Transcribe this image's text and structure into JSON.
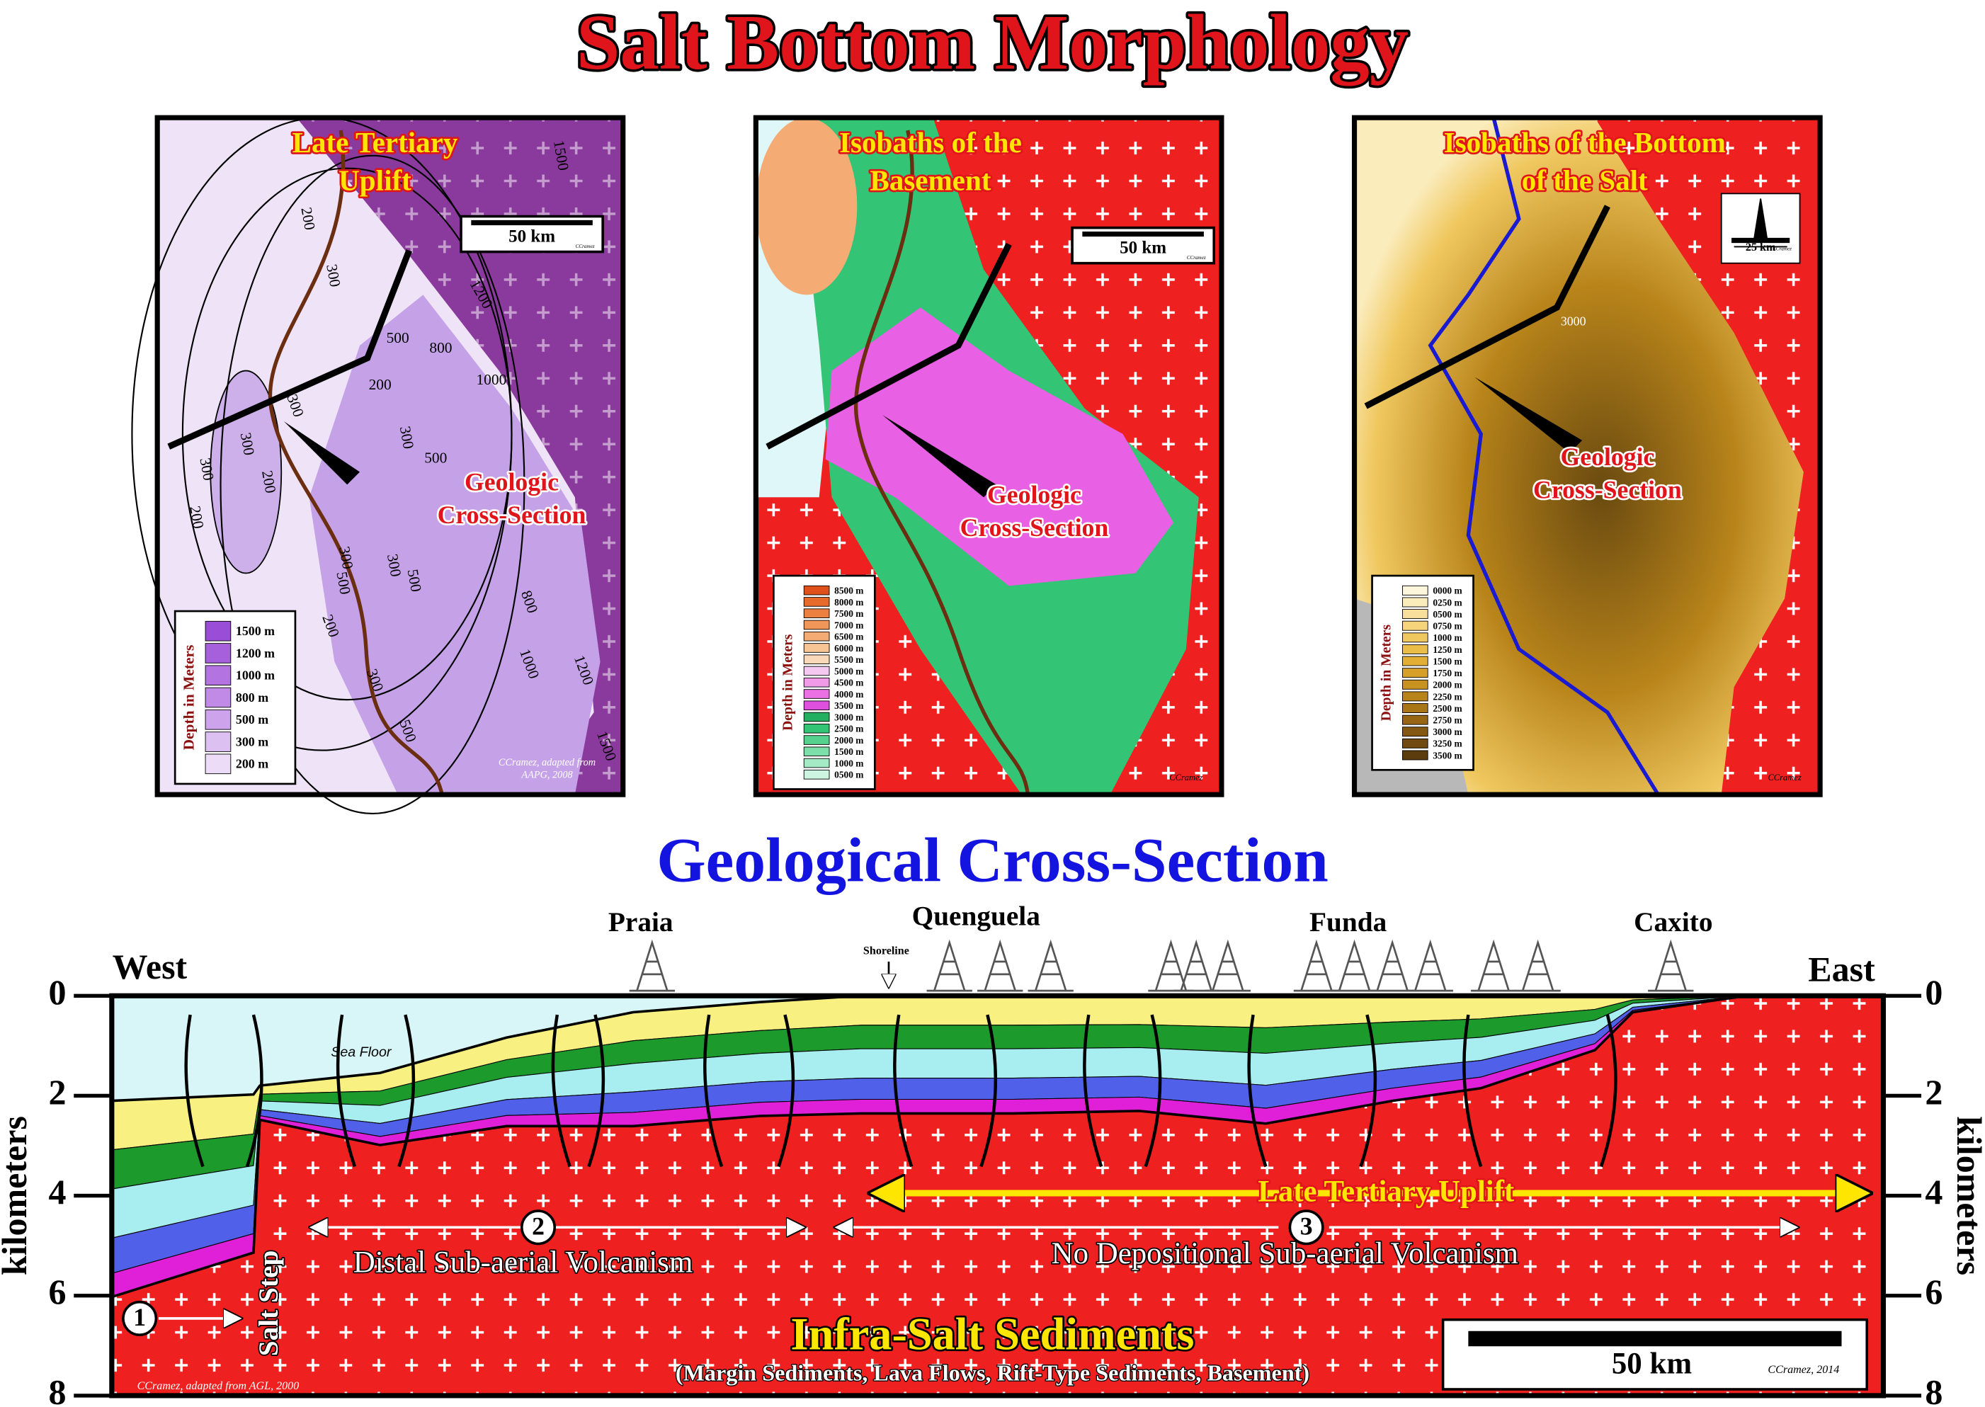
{
  "title": "Salt Bottom Morphology",
  "maps": [
    {
      "title_lines": [
        "Late Tertiary",
        "Uplift"
      ],
      "scale": "50 km",
      "scale_credit": "CCramez",
      "section_label": [
        "Geologic",
        "Cross-Section"
      ],
      "legend_title": "Depth in Meters",
      "legend": [
        {
          "label": "1500 m",
          "color": "#9a4ed8"
        },
        {
          "label": "1200 m",
          "color": "#a760dc"
        },
        {
          "label": "1000 m",
          "color": "#b373e0"
        },
        {
          "label": "800 m",
          "color": "#c08ae6"
        },
        {
          "label": "500 m",
          "color": "#cda3ec"
        },
        {
          "label": "300 m",
          "color": "#dcc0f2"
        },
        {
          "label": "200 m",
          "color": "#ecdcf8"
        }
      ],
      "contours": [
        "1500",
        "200",
        "300",
        "1200",
        "500",
        "800",
        "200",
        "1000",
        "300",
        "300",
        "200",
        "300",
        "200",
        "500",
        "300",
        "300",
        "300",
        "500",
        "500",
        "800",
        "1000",
        "1200",
        "1500",
        "200",
        "300",
        "500"
      ],
      "credit_lines": [
        "CCramez, adapted from",
        "AAPG, 2008"
      ]
    },
    {
      "title_lines": [
        "Isobaths of the",
        "Basement"
      ],
      "scale": "50 km",
      "scale_credit": "CCramez",
      "section_label": [
        "Geologic",
        "Cross-Section"
      ],
      "legend_title": "Depth in Meters",
      "legend": [
        {
          "label": "8500 m",
          "color": "#e0501a"
        },
        {
          "label": "8000 m",
          "color": "#e66a2a"
        },
        {
          "label": "7500 m",
          "color": "#ec8040"
        },
        {
          "label": "7000 m",
          "color": "#f09658"
        },
        {
          "label": "6500 m",
          "color": "#f4ac74"
        },
        {
          "label": "6000 m",
          "color": "#f7c494"
        },
        {
          "label": "5500 m",
          "color": "#f8d8b8"
        },
        {
          "label": "5000 m",
          "color": "#f4c8f0"
        },
        {
          "label": "4500 m",
          "color": "#f09ae8"
        },
        {
          "label": "4000 m",
          "color": "#ea70e4"
        },
        {
          "label": "3500 m",
          "color": "#e050de"
        },
        {
          "label": "3000 m",
          "color": "#22b060"
        },
        {
          "label": "2500 m",
          "color": "#34c476"
        },
        {
          "label": "2000 m",
          "color": "#56d28e"
        },
        {
          "label": "1500 m",
          "color": "#7cdea8"
        },
        {
          "label": "1000 m",
          "color": "#a4eac4"
        },
        {
          "label": "0500 m",
          "color": "#ccf4e0"
        }
      ],
      "credit_lines": [
        "CCramez"
      ]
    },
    {
      "title_lines": [
        "Isobaths of the Bottom",
        "of the Salt"
      ],
      "scale": "25 km",
      "scale_credit": "CCramez",
      "section_label": [
        "Geologic",
        "Cross-Section"
      ],
      "legend_title": "Depth in Meters",
      "legend": [
        {
          "label": "0000 m",
          "color": "#fdf6dc"
        },
        {
          "label": "0250 m",
          "color": "#fbecbc"
        },
        {
          "label": "0500 m",
          "color": "#f8e09c"
        },
        {
          "label": "0750 m",
          "color": "#f5d47c"
        },
        {
          "label": "1000 m",
          "color": "#f0c860"
        },
        {
          "label": "1250 m",
          "color": "#eabc48"
        },
        {
          "label": "1500 m",
          "color": "#e2ae34"
        },
        {
          "label": "1750 m",
          "color": "#d6a028"
        },
        {
          "label": "2000 m",
          "color": "#c89220"
        },
        {
          "label": "2250 m",
          "color": "#b8841a"
        },
        {
          "label": "2500 m",
          "color": "#a87616"
        },
        {
          "label": "2750 m",
          "color": "#966614"
        },
        {
          "label": "3000 m",
          "color": "#845812"
        },
        {
          "label": "3250 m",
          "color": "#704a10"
        },
        {
          "label": "3500 m",
          "color": "#5c3c0c"
        }
      ],
      "contours": [
        "3000"
      ],
      "credit_lines": [
        "CCramez"
      ]
    }
  ],
  "cross_section": {
    "title": "Geological Cross-Section",
    "west": "West",
    "east": "East",
    "towns": [
      "Praia",
      "Quenguela",
      "Funda",
      "Caxito"
    ],
    "shoreline": "Shoreline",
    "sea_floor": "Sea Floor",
    "uplift": "Late Tertiary Uplift",
    "zones": [
      {
        "number": "1"
      },
      {
        "number": "2",
        "label": "Distal  Sub-aerial Volcanism"
      },
      {
        "number": "3",
        "label": "No Depositional Sub-aerial Volcanism"
      }
    ],
    "salt_step": "Salt Step",
    "basement": "Infra-Salt Sediments",
    "basement_note": "(Margin Sediments, Lava Flows, Rift-Type Sediments, Basement)",
    "scale": "50 km",
    "credit_right": "CCramez, 2014",
    "credit_left": "CCramez, adapted from AGL, 2000",
    "axis_label": "kilometers",
    "depth_ticks": [
      "0",
      "2",
      "4",
      "6",
      "8"
    ]
  }
}
